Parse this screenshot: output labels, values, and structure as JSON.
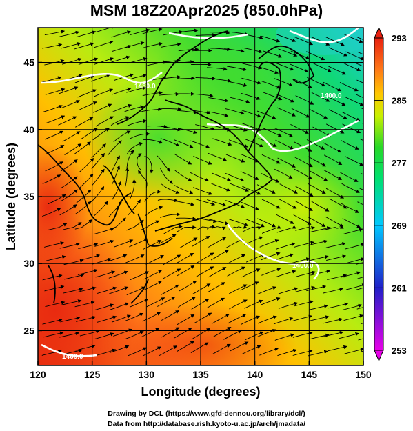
{
  "title": "MSM 18Z20Apr2025 (850.0hPa)",
  "x_axis": {
    "label": "Longitude (degrees)",
    "ticks": [
      120,
      125,
      130,
      135,
      140,
      145,
      150
    ],
    "range": [
      120,
      150
    ]
  },
  "y_axis": {
    "label": "Latitude  (degrees)",
    "ticks": [
      25,
      30,
      35,
      40,
      45
    ],
    "range": [
      22.4,
      47.6
    ]
  },
  "colorbar": {
    "ticks": [
      293,
      285,
      277,
      269,
      261,
      253
    ],
    "range": [
      253,
      293
    ],
    "colors": [
      "#e800e8",
      "#2020c8",
      "#00c8ff",
      "#00e070",
      "#28d828",
      "#c8f000",
      "#ffc800",
      "#ff7818",
      "#e82010"
    ]
  },
  "contour_labels": [
    "1480.0",
    "1460.0",
    "1400.0",
    "1400.0"
  ],
  "credits": {
    "line1": "Drawing by DCL (https://www.gfd-dennou.org/library/dcl/)",
    "line2": "Data from http://database.rish.kyoto-u.ac.jp/arch/jmadata/"
  },
  "grid": true
}
